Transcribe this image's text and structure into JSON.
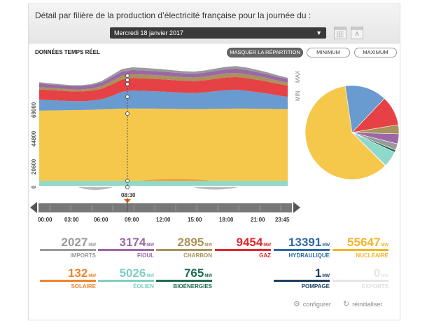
{
  "header": {
    "title": "Détail par filière de la production d’électricité française pour la journée du :",
    "date": "Mercredi 18 janvier 2017",
    "calendar_letter": "A"
  },
  "toolbar": {
    "live_label": "DONNÉES TEMPS RÉEL",
    "mask_label": "MASQUER LA RÉPARTITION",
    "min_label": "MINIMUM",
    "max_label": "MAXIMUM"
  },
  "chart_data": {
    "type": "area",
    "y_ticks": [
      "0",
      "20600",
      "44800",
      "69000"
    ],
    "side_labels": [
      "MAX",
      "MIN"
    ],
    "x_ticks": [
      "00:00",
      "03:00",
      "06:00",
      "09:00",
      "12:00",
      "15:00",
      "18:00",
      "21:00",
      "23:45"
    ],
    "cursor": "08:30",
    "hours": [
      0,
      1,
      2,
      3,
      4,
      5,
      6,
      7,
      8,
      9,
      10,
      11,
      12,
      13,
      14,
      15,
      16,
      17,
      18,
      19,
      20,
      21,
      22,
      23,
      24
    ],
    "series": [
      {
        "key": "nucleaire",
        "color": "#f5c84c",
        "values": [
          54000,
          54200,
          54300,
          54400,
          54500,
          54700,
          55000,
          55300,
          55600,
          55700,
          55650,
          55600,
          55500,
          55400,
          55300,
          55250,
          55300,
          55400,
          55500,
          55600,
          55600,
          55500,
          55400,
          55300,
          55200
        ]
      },
      {
        "key": "hydraulique",
        "color": "#6a9bd0",
        "values": [
          8500,
          8000,
          7500,
          7000,
          6800,
          7000,
          7800,
          10000,
          13000,
          13800,
          13600,
          13400,
          13200,
          12800,
          12500,
          12300,
          12800,
          13600,
          14300,
          14500,
          13800,
          12800,
          11800,
          10500,
          9500
        ]
      },
      {
        "key": "gaz",
        "color": "#e64144",
        "values": [
          7800,
          7700,
          7600,
          7500,
          7500,
          7600,
          8000,
          8800,
          9400,
          9600,
          9600,
          9500,
          9400,
          9300,
          9200,
          9200,
          9300,
          9500,
          9700,
          9800,
          9700,
          9500,
          9300,
          9000,
          8700
        ]
      },
      {
        "key": "charbon",
        "color": "#a9925b",
        "values": [
          1800,
          1700,
          1600,
          1600,
          1600,
          1700,
          2000,
          2500,
          2900,
          3000,
          3000,
          2950,
          2900,
          2850,
          2800,
          2800,
          2850,
          2950,
          3100,
          3150,
          3050,
          2900,
          2700,
          2400,
          2100
        ]
      },
      {
        "key": "fioul",
        "color": "#9b68a6",
        "values": [
          2800,
          2600,
          2500,
          2400,
          2400,
          2500,
          2700,
          3000,
          3170,
          3200,
          3150,
          3100,
          3050,
          3000,
          2950,
          2950,
          3000,
          3100,
          3250,
          3300,
          3200,
          3100,
          2950,
          2800,
          2700
        ]
      },
      {
        "key": "imports",
        "color": "#9a9a9a",
        "values": [
          1000,
          900,
          900,
          800,
          800,
          900,
          1200,
          1700,
          2000,
          2100,
          2000,
          1900,
          1800,
          1700,
          1600,
          1600,
          1700,
          1800,
          1900,
          2000,
          1900,
          1700,
          1500,
          1300,
          1100
        ]
      }
    ],
    "ymax": 82000
  },
  "pie": [
    {
      "key": "nucleaire",
      "color": "#f5c84c",
      "value": 55647
    },
    {
      "key": "hydraulique",
      "color": "#6a9bd0",
      "value": 13391
    },
    {
      "key": "gaz",
      "color": "#e64144",
      "value": 9454
    },
    {
      "key": "charbon",
      "color": "#a9925b",
      "value": 2895
    },
    {
      "key": "fioul",
      "color": "#9b68a6",
      "value": 3174
    },
    {
      "key": "imports",
      "color": "#9a9a9a",
      "value": 2027
    },
    {
      "key": "bioenergies",
      "color": "#1f6b53",
      "value": 765
    },
    {
      "key": "eolien",
      "color": "#8fd9cb",
      "value": 5026
    },
    {
      "key": "solaire",
      "color": "#f0842c",
      "value": 132
    }
  ],
  "stats": [
    {
      "id": "imports",
      "value": "2027",
      "unit": "MW",
      "label": "IMPORTS",
      "color": "#9a9a9a",
      "label_color": "#9a9a9a"
    },
    {
      "id": "fioul",
      "value": "3174",
      "unit": "MW",
      "label": "FIOUL",
      "color": "#9b68a6",
      "label_color": "#9b68a6"
    },
    {
      "id": "charbon",
      "value": "2895",
      "unit": "MW",
      "label": "CHARBON",
      "color": "#a9925b",
      "label_color": "#a9925b"
    },
    {
      "id": "gaz",
      "value": "9454",
      "unit": "MW",
      "label": "GAZ",
      "color": "#e0282e",
      "label_color": "#e0282e"
    },
    {
      "id": "hydraulique",
      "value": "13391",
      "unit": "MW",
      "label": "HYDRAULIQUE",
      "color": "#2f6aa6",
      "label_color": "#2f6aa6"
    },
    {
      "id": "nucleaire",
      "value": "55647",
      "unit": "MW",
      "label": "NUCLÉAIRE",
      "color": "#f3b528",
      "label_color": "#f3b528"
    },
    {
      "id": "solaire",
      "value": "132",
      "unit": "MW",
      "label": "SOLAIRE",
      "color": "#f0842c",
      "label_color": "#f0842c"
    },
    {
      "id": "eolien",
      "value": "5026",
      "unit": "MW",
      "label": "ÉOLIEN",
      "color": "#7fcfc0",
      "label_color": "#7fcfc0"
    },
    {
      "id": "bioenergies",
      "value": "765",
      "unit": "MW",
      "label": "BIOÉNERGIES",
      "color": "#1f6b53",
      "label_color": "#1f6b53"
    },
    {
      "id": "pompage",
      "value": "1",
      "unit": "MW",
      "label": "POMPAGE",
      "color": "#1d3f5f",
      "label_color": "#1d3f5f"
    },
    {
      "id": "exports",
      "value": "0",
      "unit": "MW",
      "label": "EXPORTS",
      "color": "#e6e6e6",
      "label_color": "#e0e0e0"
    }
  ],
  "footer": {
    "configure_label": "configurer",
    "reset_label": "réinitialiser"
  }
}
